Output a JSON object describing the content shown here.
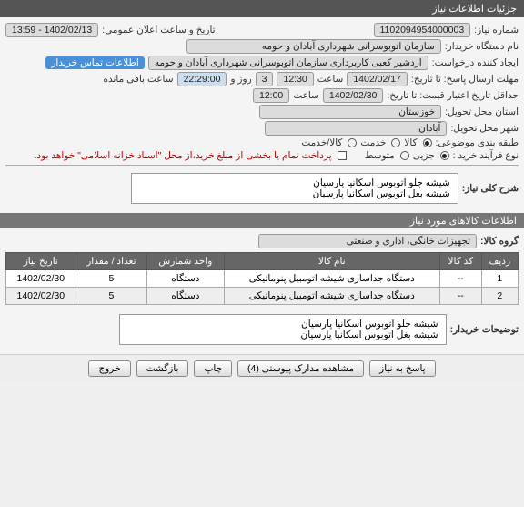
{
  "window_title": "جزئیات اطلاعات نیاز",
  "fields": {
    "req_no_label": "شماره نیاز:",
    "req_no": "1102094954000003",
    "ann_label": "تاریخ و ساعت اعلان عمومی:",
    "ann_value": "1402/02/13 - 13:59",
    "buyer_label": "نام دستگاه خریدار:",
    "buyer_value": "سازمان اتوبوسرانی شهرداری آبادان و حومه",
    "requester_label": "ایجاد کننده درخواست:",
    "requester_value": "اردشیر کعبی کاربرداری سازمان اتوبوسرانی شهرداری آبادان و حومه",
    "contact_link": "اطلاعات تماس خریدار",
    "deadline_label": "مهلت ارسال پاسخ: تا تاریخ:",
    "deadline_date": "1402/02/17",
    "time_lbl": "ساعت",
    "deadline_time": "12:30",
    "day_lbl": "روز و",
    "day_val": "3",
    "remain_time": "22:29:00",
    "remain_suffix": "ساعت باقی مانده",
    "valid_label": "حداقل تاریخ اعتبار قیمت: تا تاریخ:",
    "valid_date": "1402/02/30",
    "valid_time": "12:00",
    "province_label": "استان محل تحویل:",
    "province_value": "خوزستان",
    "city_label": "شهر محل تحویل:",
    "city_value": "آبادان",
    "subject_class_label": "طبقه بندی موضوعی:",
    "opt_kala": "کالا",
    "opt_khadamat": "خدمت",
    "opt_kala_khadamat": "کالا/خدمت",
    "process_label": "نوع فرآیند خرید :",
    "opt_jozii": "جزیی",
    "opt_motavaset": "متوسط",
    "pay_note": "پرداخت تمام یا بخشی از مبلغ خرید،از محل \"اسناد خزانه اسلامی\" خواهد بود."
  },
  "blocks": {
    "summary_label": "شرح کلی نیاز:",
    "summary_text": "شیشه جلو اتوبوس اسکانیا پارسیان\nشیشه بغل اتوبوس اسکانیا پارسیان",
    "items_header": "اطلاعات کالاهای مورد نیاز",
    "group_label": "گروه کالا:",
    "group_value": "تجهیزات خانگی، اداری و صنعتی",
    "buyer_note_label": "توضیحات خریدار:",
    "buyer_note_text": "شیشه جلو اتوبوس اسکانیا پارسیان\nشیشه بغل اتوبوس اسکانیا پارسیان"
  },
  "table": {
    "headers": [
      "ردیف",
      "کد کالا",
      "نام کالا",
      "واحد شمارش",
      "تعداد / مقدار",
      "تاریخ نیاز"
    ],
    "rows": [
      [
        "1",
        "--",
        "دستگاه جداسازی شیشه اتومبیل پنوماتیکی",
        "دستگاه",
        "5",
        "1402/02/30"
      ],
      [
        "2",
        "--",
        "دستگاه جداسازی شیشه اتومبیل پنوماتیکی",
        "دستگاه",
        "5",
        "1402/02/30"
      ]
    ]
  },
  "buttons": {
    "respond": "پاسخ به نیاز",
    "attachments": "مشاهده مدارک پیوستی (4)",
    "print": "چاپ",
    "back": "بازگشت",
    "exit": "خروج"
  }
}
